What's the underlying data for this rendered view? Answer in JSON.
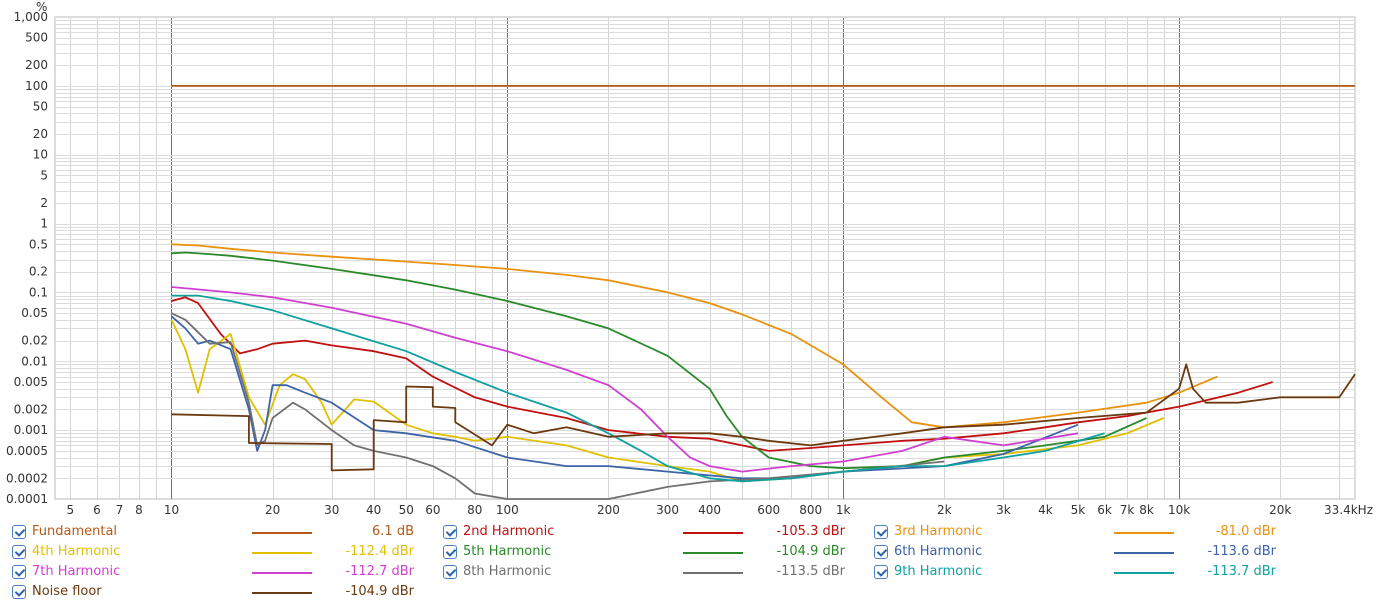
{
  "chart_data": {
    "type": "line",
    "ylabel": "%",
    "xscale": "log",
    "yscale": "log",
    "xlim": [
      4.5,
      33400
    ],
    "ylim": [
      0.0001,
      1000
    ],
    "grid": true,
    "xticks": [
      {
        "v": 5,
        "label": "5"
      },
      {
        "v": 6,
        "label": "6"
      },
      {
        "v": 7,
        "label": "7"
      },
      {
        "v": 8,
        "label": "8"
      },
      {
        "v": 10,
        "label": "10"
      },
      {
        "v": 20,
        "label": "20"
      },
      {
        "v": 30,
        "label": "30"
      },
      {
        "v": 40,
        "label": "40"
      },
      {
        "v": 50,
        "label": "50"
      },
      {
        "v": 60,
        "label": "60"
      },
      {
        "v": 80,
        "label": "80"
      },
      {
        "v": 100,
        "label": "100"
      },
      {
        "v": 200,
        "label": "200"
      },
      {
        "v": 300,
        "label": "300"
      },
      {
        "v": 400,
        "label": "400"
      },
      {
        "v": 600,
        "label": "600"
      },
      {
        "v": 800,
        "label": "800"
      },
      {
        "v": 1000,
        "label": "1k"
      },
      {
        "v": 2000,
        "label": "2k"
      },
      {
        "v": 3000,
        "label": "3k"
      },
      {
        "v": 4000,
        "label": "4k"
      },
      {
        "v": 5000,
        "label": "5k"
      },
      {
        "v": 6000,
        "label": "6k"
      },
      {
        "v": 7000,
        "label": "7k"
      },
      {
        "v": 8000,
        "label": "8k"
      },
      {
        "v": 10000,
        "label": "10k"
      },
      {
        "v": 20000,
        "label": "20k"
      },
      {
        "v": 33400,
        "label": "33.4kHz"
      }
    ],
    "yticks": [
      {
        "v": 1000,
        "label": "1,000"
      },
      {
        "v": 500,
        "label": "500"
      },
      {
        "v": 200,
        "label": "200"
      },
      {
        "v": 100,
        "label": "100"
      },
      {
        "v": 50,
        "label": "50"
      },
      {
        "v": 20,
        "label": "20"
      },
      {
        "v": 10,
        "label": "10"
      },
      {
        "v": 5,
        "label": "5"
      },
      {
        "v": 2,
        "label": "2"
      },
      {
        "v": 1,
        "label": "1"
      },
      {
        "v": 0.5,
        "label": "0.5"
      },
      {
        "v": 0.2,
        "label": "0.2"
      },
      {
        "v": 0.1,
        "label": "0.1"
      },
      {
        "v": 0.05,
        "label": "0.05"
      },
      {
        "v": 0.02,
        "label": "0.02"
      },
      {
        "v": 0.01,
        "label": "0.01"
      },
      {
        "v": 0.005,
        "label": "0.005"
      },
      {
        "v": 0.002,
        "label": "0.002"
      },
      {
        "v": 0.001,
        "label": "0.001"
      },
      {
        "v": 0.0005,
        "label": "0.0005"
      },
      {
        "v": 0.0002,
        "label": "0.0002"
      },
      {
        "v": 0.0001,
        "label": "0.0001"
      }
    ],
    "series": [
      {
        "name": "Fundamental",
        "value": "6.1 dB",
        "color": "#b35a1a",
        "x": [
          10,
          33400
        ],
        "y": [
          100,
          100
        ]
      },
      {
        "name": "2nd Harmonic",
        "value": "-105.3 dBr",
        "color": "#c01010",
        "x": [
          10,
          11,
          12,
          14,
          16,
          18,
          20,
          25,
          30,
          40,
          50,
          60,
          80,
          100,
          150,
          200,
          300,
          400,
          500,
          600,
          800,
          1000,
          1500,
          2000,
          3000,
          4000,
          5000,
          7000,
          10000,
          15000,
          19000
        ],
        "y": [
          0.075,
          0.085,
          0.07,
          0.025,
          0.013,
          0.015,
          0.018,
          0.02,
          0.017,
          0.014,
          0.011,
          0.006,
          0.003,
          0.0022,
          0.0015,
          0.001,
          0.0008,
          0.00075,
          0.0006,
          0.0005,
          0.00055,
          0.0006,
          0.0007,
          0.00075,
          0.0009,
          0.0011,
          0.0013,
          0.0016,
          0.0022,
          0.0035,
          0.005
        ]
      },
      {
        "name": "3rd Harmonic",
        "value": "-81.0 dBr",
        "color": "#e8920e",
        "x": [
          10,
          12,
          15,
          20,
          30,
          50,
          70,
          100,
          150,
          200,
          300,
          400,
          500,
          700,
          1000,
          1300,
          1600,
          2000,
          3000,
          5000,
          8000,
          10000,
          13000
        ],
        "y": [
          0.5,
          0.48,
          0.43,
          0.38,
          0.33,
          0.28,
          0.25,
          0.22,
          0.18,
          0.15,
          0.1,
          0.07,
          0.048,
          0.025,
          0.009,
          0.003,
          0.0013,
          0.0011,
          0.0013,
          0.0018,
          0.0025,
          0.0035,
          0.006
        ]
      },
      {
        "name": "4th Harmonic",
        "value": "-112.4 dBr",
        "color": "#e0c000",
        "x": [
          10,
          11,
          12,
          13,
          15,
          17,
          19,
          21,
          23,
          25,
          28,
          30,
          35,
          40,
          50,
          60,
          70,
          80,
          100,
          150,
          200,
          300,
          400,
          500,
          700,
          1000,
          1500,
          2000,
          3000,
          5000,
          7000,
          9000
        ],
        "y": [
          0.04,
          0.015,
          0.0035,
          0.015,
          0.025,
          0.003,
          0.0012,
          0.0045,
          0.0065,
          0.0055,
          0.0025,
          0.0012,
          0.0028,
          0.0026,
          0.0012,
          0.0009,
          0.0008,
          0.0007,
          0.0008,
          0.0006,
          0.0004,
          0.0003,
          0.00025,
          0.00018,
          0.0002,
          0.00025,
          0.0003,
          0.0004,
          0.00045,
          0.0006,
          0.0009,
          0.0015
        ]
      },
      {
        "name": "5th Harmonic",
        "value": "-104.9 dBr",
        "color": "#2a8a2a",
        "x": [
          10,
          11,
          13,
          15,
          20,
          30,
          50,
          70,
          100,
          150,
          200,
          300,
          400,
          450,
          500,
          600,
          800,
          1000,
          1500,
          2000,
          3000,
          4000,
          6000,
          8000
        ],
        "y": [
          0.37,
          0.38,
          0.36,
          0.34,
          0.29,
          0.22,
          0.15,
          0.11,
          0.075,
          0.045,
          0.03,
          0.012,
          0.004,
          0.0016,
          0.0008,
          0.0004,
          0.0003,
          0.00028,
          0.0003,
          0.0004,
          0.0005,
          0.0006,
          0.0008,
          0.0015
        ]
      },
      {
        "name": "6th Harmonic",
        "value": "-113.6 dBr",
        "color": "#3d63a8",
        "x": [
          10,
          11,
          12,
          13,
          15,
          17,
          18,
          19,
          20,
          22,
          25,
          30,
          40,
          50,
          70,
          100,
          150,
          200,
          300,
          500,
          700,
          1000,
          2000,
          3000,
          5000
        ],
        "y": [
          0.045,
          0.03,
          0.018,
          0.02,
          0.015,
          0.002,
          0.0005,
          0.001,
          0.0045,
          0.0045,
          0.0035,
          0.0025,
          0.001,
          0.0009,
          0.0007,
          0.0004,
          0.0003,
          0.0003,
          0.00025,
          0.0002,
          0.0002,
          0.00025,
          0.0003,
          0.00045,
          0.0012
        ]
      },
      {
        "name": "7th Harmonic",
        "value": "-112.7 dBr",
        "color": "#d040d0",
        "x": [
          10,
          15,
          20,
          30,
          50,
          70,
          100,
          150,
          200,
          250,
          300,
          350,
          400,
          500,
          700,
          1000,
          1500,
          2000,
          3000,
          5000
        ],
        "y": [
          0.12,
          0.1,
          0.085,
          0.06,
          0.035,
          0.022,
          0.014,
          0.0075,
          0.0045,
          0.002,
          0.0008,
          0.0004,
          0.0003,
          0.00025,
          0.0003,
          0.00035,
          0.0005,
          0.0008,
          0.0006,
          0.0009
        ]
      },
      {
        "name": "8th Harmonic",
        "value": "-113.5 dBr",
        "color": "#707070",
        "x": [
          10,
          11,
          13,
          15,
          17,
          18,
          19,
          20,
          23,
          25,
          30,
          35,
          40,
          50,
          60,
          70,
          80,
          100,
          150,
          200,
          300,
          400,
          600,
          1000,
          2000
        ],
        "y": [
          0.05,
          0.04,
          0.018,
          0.019,
          0.0025,
          0.0006,
          0.0007,
          0.0015,
          0.0025,
          0.002,
          0.001,
          0.0006,
          0.0005,
          0.0004,
          0.0003,
          0.0002,
          0.00012,
          0.0001,
          0.0001,
          0.0001,
          0.00015,
          0.00018,
          0.0002,
          0.00025,
          0.00035
        ]
      },
      {
        "name": "9th Harmonic",
        "value": "-113.7 dBr",
        "color": "#10a0a0",
        "x": [
          10,
          12,
          15,
          20,
          30,
          50,
          70,
          100,
          150,
          200,
          250,
          300,
          400,
          500,
          700,
          1000,
          1500,
          2000,
          3000,
          4000,
          6000
        ],
        "y": [
          0.09,
          0.09,
          0.075,
          0.055,
          0.03,
          0.014,
          0.007,
          0.0035,
          0.0018,
          0.0009,
          0.0005,
          0.0003,
          0.0002,
          0.00018,
          0.0002,
          0.00025,
          0.0003,
          0.0003,
          0.0004,
          0.0005,
          0.0009
        ]
      },
      {
        "name": "Noise floor",
        "value": "-104.9 dBr",
        "color": "#6b3a10",
        "x": [
          10,
          17,
          17,
          30,
          30,
          40,
          40,
          50,
          50,
          60,
          60,
          70,
          70,
          90,
          100,
          120,
          150,
          200,
          300,
          400,
          500,
          600,
          800,
          1000,
          1500,
          2000,
          3000,
          5000,
          8000,
          10000,
          10500,
          11000,
          12000,
          15000,
          20000,
          30000,
          33400
        ],
        "y": [
          0.0017,
          0.0016,
          0.00065,
          0.00063,
          0.00026,
          0.00027,
          0.0014,
          0.0013,
          0.0043,
          0.0042,
          0.0022,
          0.0021,
          0.0013,
          0.0006,
          0.0012,
          0.0009,
          0.0011,
          0.0008,
          0.0009,
          0.0009,
          0.0008,
          0.0007,
          0.0006,
          0.0007,
          0.0009,
          0.0011,
          0.0012,
          0.0015,
          0.0018,
          0.004,
          0.009,
          0.004,
          0.0025,
          0.0025,
          0.003,
          0.003,
          0.0065
        ]
      }
    ]
  }
}
